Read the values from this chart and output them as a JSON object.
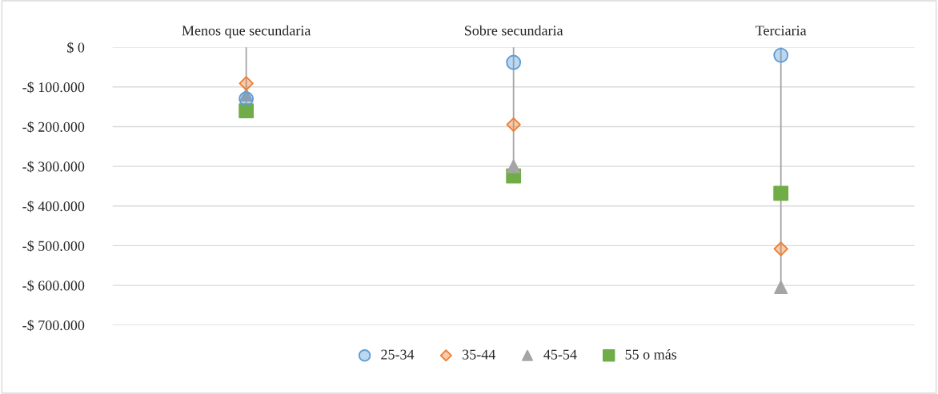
{
  "chart_data": {
    "type": "lollipop",
    "categories": [
      "Menos que secundaria",
      "Sobre secundaria",
      "Terciaria"
    ],
    "series": [
      {
        "name": "25-34",
        "color": "#5b9bd5",
        "marker": "circle",
        "values": [
          -130000,
          -38000,
          -20000
        ]
      },
      {
        "name": "35-44",
        "color": "#ed7d31",
        "marker": "diamond",
        "values": [
          -91000,
          -195000,
          -508000
        ]
      },
      {
        "name": "45-54",
        "color": "#a5a5a5",
        "marker": "triangle",
        "values": [
          -120000,
          -300000,
          -605000
        ]
      },
      {
        "name": "55 o más",
        "color": "#70ad47",
        "marker": "square",
        "values": [
          -160000,
          -324000,
          -368000
        ]
      }
    ],
    "ylim": [
      -700000,
      0
    ],
    "yticks": [
      {
        "value": 0,
        "label": "$ 0"
      },
      {
        "value": -100000,
        "label": "-$ 100.000"
      },
      {
        "value": -200000,
        "label": "-$ 200.000"
      },
      {
        "value": -300000,
        "label": "-$ 300.000"
      },
      {
        "value": -400000,
        "label": "-$ 400.000"
      },
      {
        "value": -500000,
        "label": "-$ 500.000"
      },
      {
        "value": -600000,
        "label": "-$ 600.000"
      },
      {
        "value": -700000,
        "label": "-$ 700.000"
      }
    ],
    "grid": "y",
    "legend": "bottom"
  }
}
